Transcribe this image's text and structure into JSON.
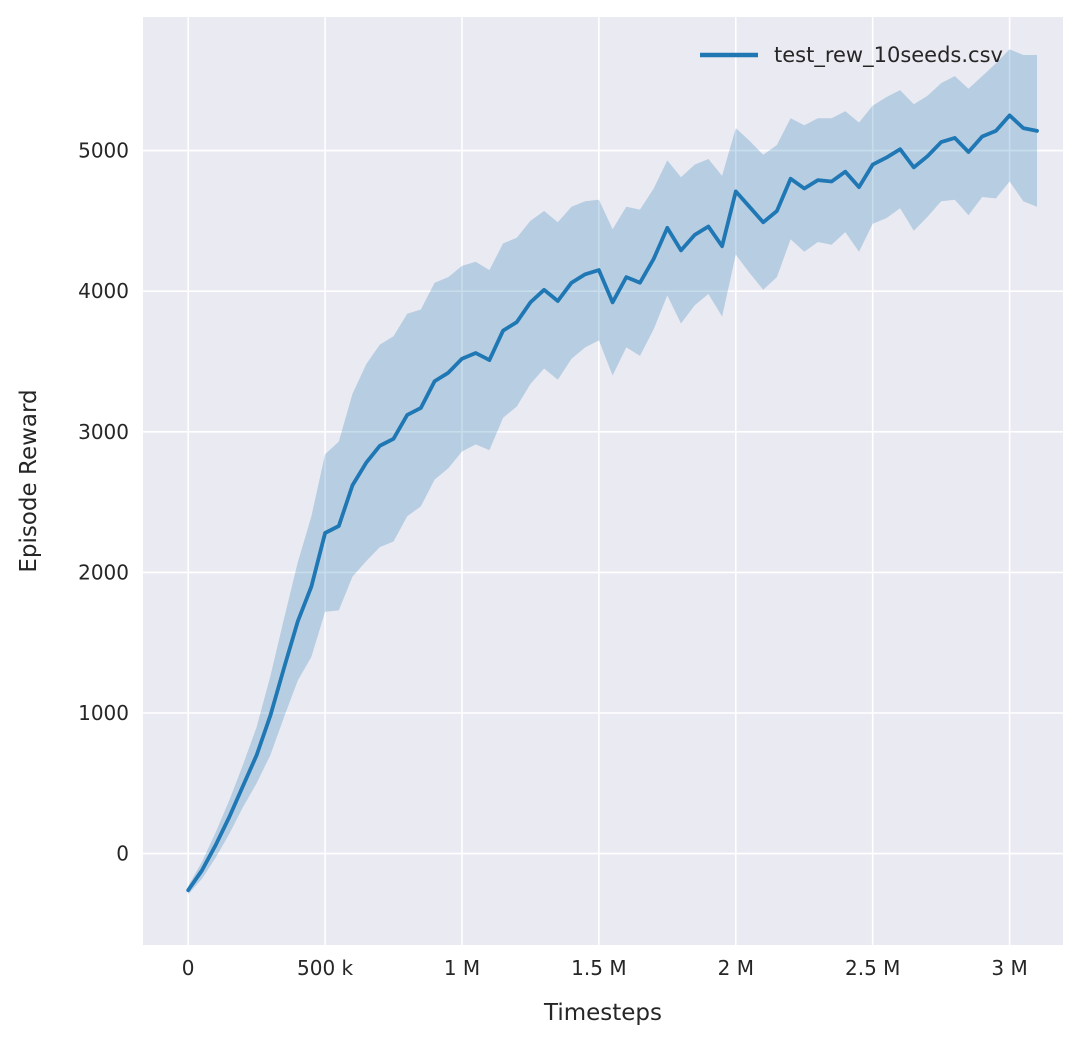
{
  "chart_data": {
    "type": "line",
    "title": "",
    "xlabel": "Timesteps",
    "ylabel": "Episode Reward",
    "grid": true,
    "legend": {
      "position": "upper right",
      "entries": [
        "test_rew_10seeds.csv"
      ]
    },
    "xlim": [
      -165000,
      3195000
    ],
    "ylim": [
      -650,
      5950
    ],
    "x_ticks": {
      "values": [
        0,
        500000,
        1000000,
        1500000,
        2000000,
        2500000,
        3000000
      ],
      "labels": [
        "0",
        "500 k",
        "1 M",
        "1.5 M",
        "2 M",
        "2.5 M",
        "3 M"
      ]
    },
    "y_ticks": {
      "values": [
        0,
        1000,
        2000,
        3000,
        4000,
        5000
      ],
      "labels": [
        "0",
        "1000",
        "2000",
        "3000",
        "4000",
        "5000"
      ]
    },
    "colors": {
      "plot_background": "#eaeaf2",
      "grid": "#ffffff",
      "line": "#1f77b4",
      "band": "#1f77b4",
      "band_opacity": 0.25,
      "text": "#262626"
    },
    "series": [
      {
        "name": "test_rew_10seeds.csv",
        "x": [
          0,
          50000,
          100000,
          150000,
          200000,
          250000,
          300000,
          350000,
          400000,
          450000,
          500000,
          550000,
          600000,
          650000,
          700000,
          750000,
          800000,
          850000,
          900000,
          950000,
          1000000,
          1050000,
          1100000,
          1150000,
          1200000,
          1250000,
          1300000,
          1350000,
          1400000,
          1450000,
          1500000,
          1550000,
          1600000,
          1650000,
          1700000,
          1750000,
          1800000,
          1850000,
          1900000,
          1950000,
          2000000,
          2050000,
          2100000,
          2150000,
          2200000,
          2250000,
          2300000,
          2350000,
          2400000,
          2450000,
          2500000,
          2550000,
          2600000,
          2650000,
          2700000,
          2750000,
          2800000,
          2850000,
          2900000,
          2950000,
          3000000,
          3050000,
          3100000
        ],
        "mean": [
          -260,
          -120,
          60,
          260,
          480,
          700,
          980,
          1320,
          1650,
          1900,
          2280,
          2330,
          2620,
          2780,
          2900,
          2950,
          3120,
          3170,
          3360,
          3420,
          3520,
          3560,
          3510,
          3720,
          3780,
          3920,
          4010,
          3930,
          4060,
          4120,
          4150,
          3920,
          4100,
          4060,
          4230,
          4450,
          4290,
          4400,
          4460,
          4320,
          4710,
          4600,
          4490,
          4570,
          4800,
          4730,
          4790,
          4780,
          4850,
          4740,
          4900,
          4950,
          5010,
          4880,
          4960,
          5060,
          5090,
          4990,
          5100,
          5140,
          5250,
          5160,
          5140
        ],
        "band_lower": [
          -290,
          -180,
          -30,
          140,
          330,
          500,
          700,
          970,
          1230,
          1400,
          1720,
          1730,
          1970,
          2080,
          2180,
          2220,
          2400,
          2470,
          2660,
          2740,
          2860,
          2910,
          2870,
          3100,
          3180,
          3340,
          3450,
          3370,
          3520,
          3600,
          3650,
          3400,
          3600,
          3540,
          3730,
          3970,
          3770,
          3900,
          3980,
          3820,
          4260,
          4130,
          4010,
          4100,
          4370,
          4280,
          4350,
          4330,
          4420,
          4280,
          4480,
          4520,
          4590,
          4430,
          4530,
          4640,
          4650,
          4540,
          4670,
          4660,
          4780,
          4640,
          4600
        ],
        "band_upper": [
          -230,
          -60,
          150,
          380,
          630,
          900,
          1260,
          1670,
          2070,
          2400,
          2840,
          2930,
          3270,
          3480,
          3620,
          3680,
          3840,
          3870,
          4060,
          4100,
          4180,
          4210,
          4150,
          4340,
          4380,
          4500,
          4570,
          4490,
          4600,
          4640,
          4650,
          4440,
          4600,
          4580,
          4730,
          4930,
          4810,
          4900,
          4940,
          4820,
          5160,
          5070,
          4970,
          5040,
          5230,
          5180,
          5230,
          5230,
          5280,
          5200,
          5320,
          5380,
          5430,
          5330,
          5390,
          5480,
          5530,
          5440,
          5530,
          5620,
          5720,
          5680,
          5680
        ]
      }
    ]
  }
}
